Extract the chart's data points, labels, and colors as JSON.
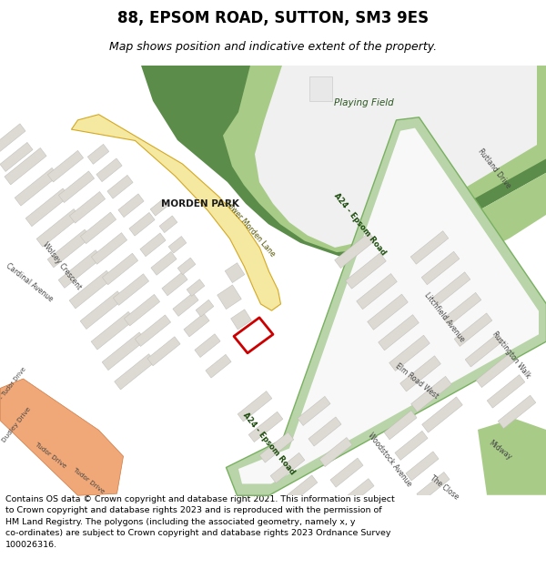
{
  "title": "88, EPSOM ROAD, SUTTON, SM3 9ES",
  "subtitle": "Map shows position and indicative extent of the property.",
  "footer": "Contains OS data © Crown copyright and database right 2021. This information is subject\nto Crown copyright and database rights 2023 and is reproduced with the permission of\nHM Land Registry. The polygons (including the associated geometry, namely x, y\nco-ordinates) are subject to Crown copyright and database rights 2023 Ordnance Survey\n100026316.",
  "map_bg": "#f2f0ec",
  "park_dark": "#5c8c4a",
  "park_light": "#a8cc88",
  "road_green_face": "#b8d4a8",
  "road_green_edge": "#78b060",
  "road_yellow_face": "#f5e8a0",
  "road_yellow_edge": "#d4a820",
  "road_white": "#ffffff",
  "building_face": "#dddad4",
  "building_edge": "#c0bdb7",
  "b279_face": "#f0a878",
  "b279_edge": "#d07840",
  "property_color": "#cc0000",
  "label_color": "#444444",
  "road_label_color": "#1a4a0a",
  "park_label_color": "#1a4a0a"
}
